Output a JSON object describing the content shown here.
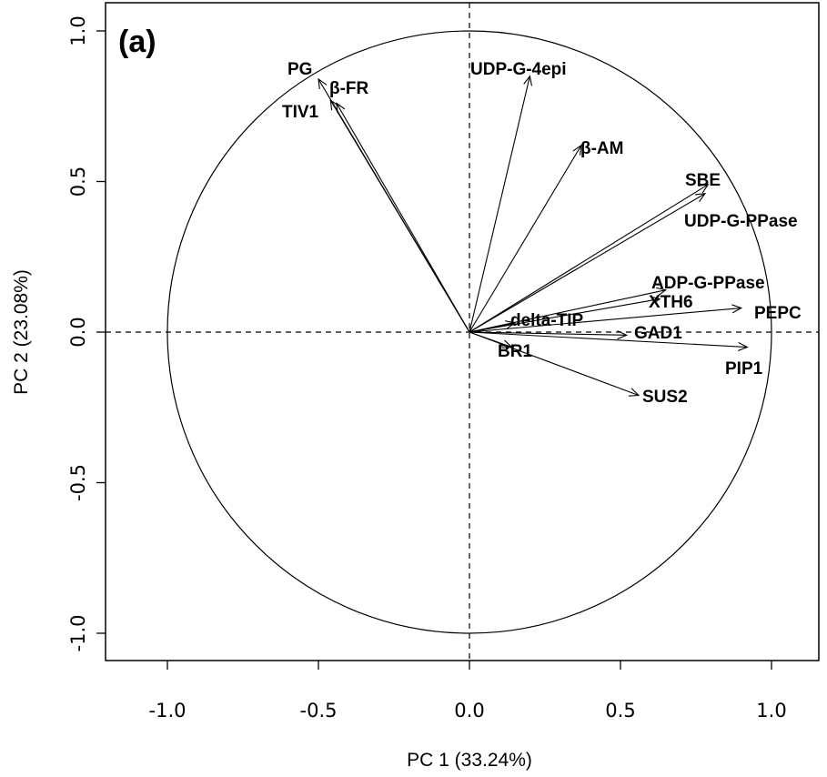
{
  "chart_data": {
    "type": "scatter",
    "subtype": "pca-correlation-circle",
    "panel_label": "(a)",
    "xlabel": "PC 1 (33.24%)",
    "ylabel": "PC 2 (23.08%)",
    "xlim": [
      -1.2,
      1.2
    ],
    "ylim": [
      -1.1,
      1.1
    ],
    "xticks": [
      "-1.0",
      "-0.5",
      "0.0",
      "0.5",
      "1.0"
    ],
    "yticks": [
      "-1.0",
      "-0.5",
      "0.0",
      "0.5",
      "1.0"
    ],
    "unit_circle": true,
    "reference_lines": "dashed lines at x = 0 and y = 0",
    "grid": false,
    "vectors": [
      {
        "label": "PG",
        "x": -0.5,
        "y": 0.84
      },
      {
        "label": "β-FR",
        "x": -0.44,
        "y": 0.76
      },
      {
        "label": "TIV1",
        "x": -0.46,
        "y": 0.77
      },
      {
        "label": "UDP-G-4epi",
        "x": 0.2,
        "y": 0.85
      },
      {
        "label": "β-AM",
        "x": 0.37,
        "y": 0.62
      },
      {
        "label": "SBE",
        "x": 0.79,
        "y": 0.49
      },
      {
        "label": "UDP-G-PPase",
        "x": 0.78,
        "y": 0.46
      },
      {
        "label": "ADP-G-PPase",
        "x": 0.65,
        "y": 0.14
      },
      {
        "label": "XTH6",
        "x": 0.63,
        "y": 0.11
      },
      {
        "label": "PEPC",
        "x": 0.9,
        "y": 0.08
      },
      {
        "label": "delta-TIP",
        "x": 0.15,
        "y": 0.03
      },
      {
        "label": "GAD1",
        "x": 0.52,
        "y": -0.01
      },
      {
        "label": "PIP1",
        "x": 0.92,
        "y": -0.05
      },
      {
        "label": "BR1",
        "x": 0.14,
        "y": -0.05
      },
      {
        "label": "SUS2",
        "x": 0.56,
        "y": -0.21
      }
    ]
  }
}
